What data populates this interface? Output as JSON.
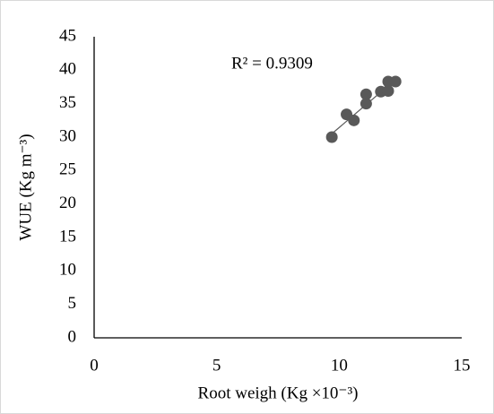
{
  "chart_data": {
    "type": "scatter",
    "x_label": "Root weigh (Kg ×10⁻³)",
    "y_label": "WUE (Kg m⁻³)",
    "annotation": "R² = 0.9309",
    "series": [
      {
        "color": "#595959",
        "x": [
          9.7,
          10.3,
          10.6,
          11.1,
          11.1,
          11.7,
          12.0,
          12.0,
          12.3
        ],
        "values": [
          30.0,
          33.4,
          32.5,
          36.4,
          35.0,
          36.8,
          36.9,
          38.3,
          38.3
        ]
      }
    ],
    "trendline": {
      "color": "#595959",
      "x": [
        9.7,
        12.3
      ],
      "values": [
        30.5,
        38.6
      ]
    },
    "xlim": [
      0,
      15
    ],
    "xticks": [
      0,
      5,
      10,
      15
    ],
    "ylim": [
      0,
      45
    ],
    "yticks": [
      0,
      5,
      10,
      15,
      20,
      25,
      30,
      35,
      40,
      45
    ]
  }
}
